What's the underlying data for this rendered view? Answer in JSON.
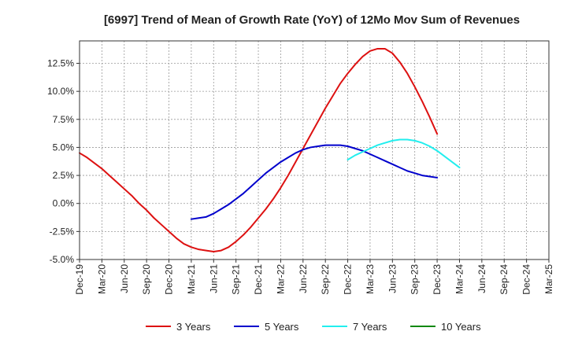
{
  "chart_data": {
    "type": "line",
    "title": "[6997]  Trend of Mean of Growth Rate (YoY) of 12Mo Mov Sum of Revenues",
    "xlabel": "",
    "ylabel": "",
    "x_ticks": [
      "Dec-19",
      "Mar-20",
      "Jun-20",
      "Sep-20",
      "Dec-20",
      "Mar-21",
      "Jun-21",
      "Sep-21",
      "Dec-21",
      "Mar-22",
      "Jun-22",
      "Sep-22",
      "Dec-22",
      "Mar-23",
      "Jun-23",
      "Sep-23",
      "Dec-23",
      "Mar-24",
      "Jun-24",
      "Sep-24",
      "Dec-24",
      "Mar-25"
    ],
    "y_ticks": [
      {
        "value": -5.0,
        "label": "-5.0%"
      },
      {
        "value": -2.5,
        "label": "-2.5%"
      },
      {
        "value": 0.0,
        "label": "0.0%"
      },
      {
        "value": 2.5,
        "label": "2.5%"
      },
      {
        "value": 5.0,
        "label": "5.0%"
      },
      {
        "value": 7.5,
        "label": "7.5%"
      },
      {
        "value": 10.0,
        "label": "10.0%"
      },
      {
        "value": 12.5,
        "label": "12.5%"
      }
    ],
    "ylim": [
      -5.0,
      14.5
    ],
    "grid": true,
    "legend_position": "bottom",
    "series": [
      {
        "name": "3 Years",
        "color": "#dd1111",
        "start_index": 0,
        "values": [
          4.5,
          4.1,
          3.6,
          3.1,
          2.5,
          1.9,
          1.3,
          0.7,
          0.0,
          -0.6,
          -1.3,
          -1.9,
          -2.5,
          -3.1,
          -3.6,
          -3.9,
          -4.1,
          -4.2,
          -4.3,
          -4.2,
          -3.9,
          -3.4,
          -2.8,
          -2.1,
          -1.3,
          -0.5,
          0.4,
          1.4,
          2.5,
          3.7,
          4.9,
          6.1,
          7.3,
          8.5,
          9.6,
          10.7,
          11.6,
          12.4,
          13.1,
          13.6,
          13.8,
          13.8,
          13.4,
          12.6,
          11.6,
          10.4,
          9.1,
          7.7,
          6.2
        ]
      },
      {
        "name": "5 Years",
        "color": "#0000cc",
        "start_index": 15,
        "values": [
          -1.4,
          -1.3,
          -1.2,
          -0.9,
          -0.5,
          -0.1,
          0.4,
          0.9,
          1.5,
          2.1,
          2.7,
          3.2,
          3.7,
          4.1,
          4.5,
          4.8,
          5.0,
          5.1,
          5.2,
          5.2,
          5.2,
          5.1,
          4.9,
          4.7,
          4.4,
          4.1,
          3.8,
          3.5,
          3.2,
          2.9,
          2.7,
          2.5,
          2.4,
          2.3
        ]
      },
      {
        "name": "7 Years",
        "color": "#22eeee",
        "start_index": 36,
        "values": [
          3.9,
          4.3,
          4.6,
          4.9,
          5.2,
          5.4,
          5.6,
          5.7,
          5.7,
          5.6,
          5.4,
          5.1,
          4.7,
          4.2,
          3.7,
          3.2
        ]
      },
      {
        "name": "10 Years",
        "color": "#118811",
        "start_index": 0,
        "values": []
      }
    ]
  }
}
